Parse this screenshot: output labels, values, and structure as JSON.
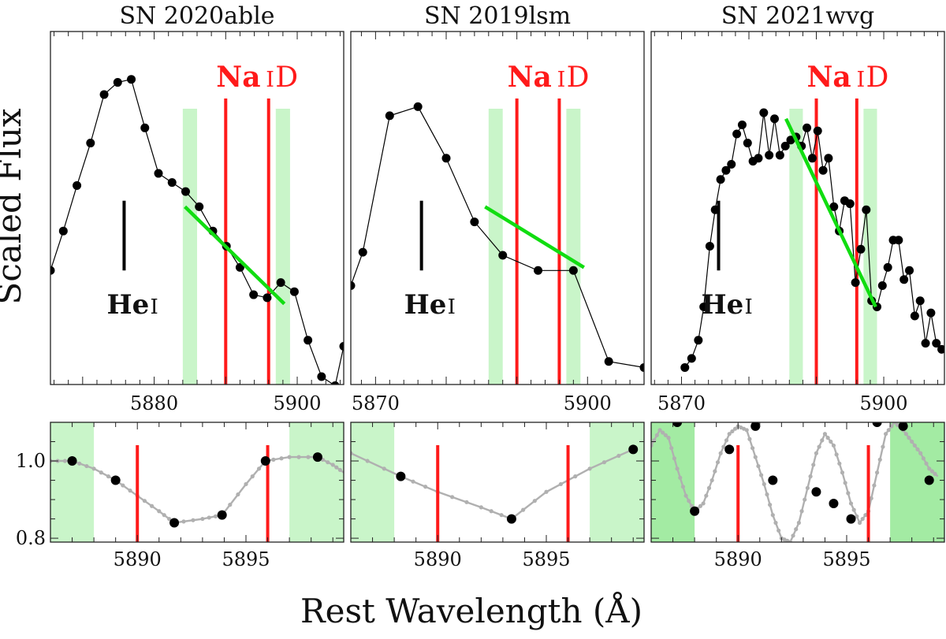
{
  "figure": {
    "ylabel": "Scaled Flux",
    "xlabel": "Rest Wavelength (Å)"
  },
  "colors": {
    "line_marker": "#ff1a1a",
    "fit": "#11dd11",
    "band": "#c9f5c9",
    "band_dark": "#a3eba3",
    "data": "#000000",
    "model": "#b0b0b0"
  },
  "chart_data": [
    {
      "title": "SN 2020able",
      "type": "line",
      "xlim": [
        5865.5,
        5906.5
      ],
      "ylim": [
        0,
        1
      ],
      "xticks": [
        5880,
        5900
      ],
      "minor_step": 2,
      "series": [
        {
          "name": "data",
          "x": [
            5865.5,
            5867.3,
            5869.2,
            5871.1,
            5873.0,
            5874.9,
            5876.8,
            5878.7,
            5880.6,
            5882.5,
            5884.4,
            5886.3,
            5888.2,
            5890.1,
            5892.0,
            5893.9,
            5895.8,
            5897.7,
            5899.6,
            5901.5,
            5903.4,
            5905.3,
            5906.5
          ],
          "y": [
            0.35,
            0.48,
            0.63,
            0.77,
            0.93,
            0.97,
            0.98,
            0.82,
            0.67,
            0.64,
            0.61,
            0.56,
            0.48,
            0.43,
            0.36,
            0.27,
            0.26,
            0.31,
            0.28,
            0.12,
            0.0,
            -0.03,
            0.1
          ]
        }
      ],
      "na_lines": [
        5890.0,
        5896.0
      ],
      "bands": [
        [
          5884.0,
          5886.0
        ],
        [
          5897.0,
          5899.0
        ]
      ],
      "fit": [
        [
          5884.3,
          0.56
        ],
        [
          5898.2,
          0.24
        ]
      ],
      "he_line": {
        "x": 5875.8,
        "y": [
          0.35,
          0.58
        ],
        "label": "He",
        "sub": "I"
      },
      "na_label": {
        "main": "Na",
        "sub": "I",
        "tail": "D"
      },
      "inset": {
        "xlim": [
          5886.0,
          5899.5
        ],
        "ylim": [
          0.79,
          1.1
        ],
        "xticks": [
          5890,
          5895
        ],
        "yticks": [
          1.0,
          0.8
        ],
        "model": {
          "x": [
            5886.0,
            5887.0,
            5888.0,
            5889.0,
            5890.0,
            5891.0,
            5891.7,
            5893.0,
            5893.9,
            5895.0,
            5895.9,
            5897.0,
            5898.3,
            5899.0,
            5899.5
          ],
          "y": [
            1.0,
            1.0,
            0.98,
            0.95,
            0.91,
            0.87,
            0.84,
            0.85,
            0.86,
            0.94,
            1.0,
            1.01,
            1.01,
            0.99,
            0.97
          ]
        },
        "points": {
          "x": [
            5887.0,
            5889.0,
            5891.7,
            5893.9,
            5895.9,
            5898.3
          ],
          "y": [
            1.0,
            0.95,
            0.84,
            0.86,
            1.0,
            1.01
          ]
        },
        "na_lines": [
          5890.0,
          5896.0
        ],
        "bands": [
          [
            5886.0,
            5888.0
          ],
          [
            5897.0,
            5899.5
          ]
        ],
        "dark_bands": false
      }
    },
    {
      "title": "SN 2019lsm",
      "type": "line",
      "xlim": [
        5866.5,
        5908.0
      ],
      "ylim": [
        0,
        1
      ],
      "xticks": [
        5870,
        5900
      ],
      "minor_step": 2,
      "series": [
        {
          "name": "data",
          "x": [
            5866.5,
            5868.2,
            5872.0,
            5876.0,
            5880.0,
            5884.0,
            5888.0,
            5893.0,
            5898.0,
            5903.0,
            5908.0
          ],
          "y": [
            0.3,
            0.41,
            0.86,
            0.89,
            0.72,
            0.51,
            0.4,
            0.35,
            0.35,
            0.05,
            0.03
          ]
        }
      ],
      "na_lines": [
        5890.0,
        5896.0
      ],
      "bands": [
        [
          5886.0,
          5888.0
        ],
        [
          5897.0,
          5899.0
        ]
      ],
      "fit": [
        [
          5885.5,
          0.56
        ],
        [
          5899.5,
          0.36
        ]
      ],
      "he_line": {
        "x": 5876.5,
        "y": [
          0.35,
          0.58
        ],
        "label": "He",
        "sub": "I"
      },
      "na_label": {
        "main": "Na",
        "sub": "I",
        "tail": "D"
      },
      "inset": {
        "xlim": [
          5886.0,
          5899.5
        ],
        "ylim": [
          0.79,
          1.1
        ],
        "xticks": [
          5890,
          5895
        ],
        "yticks": [
          1.0,
          0.8
        ],
        "model": {
          "x": [
            5886.0,
            5888.3,
            5890.0,
            5892.0,
            5893.4,
            5895.0,
            5897.0,
            5899.0
          ],
          "y": [
            1.02,
            0.96,
            0.92,
            0.88,
            0.85,
            0.92,
            0.98,
            1.03
          ]
        },
        "points": {
          "x": [
            5888.3,
            5893.4,
            5899.0
          ],
          "y": [
            0.96,
            0.85,
            1.03
          ]
        },
        "na_lines": [
          5890.0,
          5896.0
        ],
        "bands": [
          [
            5886.0,
            5888.0
          ],
          [
            5897.0,
            5899.5
          ]
        ],
        "dark_bands": false
      }
    },
    {
      "title": "SN 2021wvg",
      "type": "line",
      "xlim": [
        5865.5,
        5909.0
      ],
      "ylim": [
        0,
        1
      ],
      "xticks": [
        5870,
        5900
      ],
      "minor_step": 2,
      "series": [
        {
          "name": "data",
          "x": [
            5870.5,
            5871.5,
            5872.5,
            5873.3,
            5874.2,
            5875.0,
            5875.8,
            5876.6,
            5877.4,
            5878.2,
            5879.0,
            5879.8,
            5880.6,
            5881.4,
            5882.2,
            5883.0,
            5883.8,
            5884.6,
            5885.4,
            5886.2,
            5887.0,
            5887.8,
            5888.6,
            5889.4,
            5890.2,
            5891.0,
            5891.8,
            5892.6,
            5893.4,
            5894.2,
            5895.0,
            5895.8,
            5896.6,
            5897.4,
            5898.2,
            5899.0,
            5899.8,
            5900.6,
            5901.4,
            5902.2,
            5903.0,
            5903.8,
            5904.6,
            5905.4,
            5906.2,
            5907.0,
            5907.8,
            5908.6
          ],
          "y": [
            0.03,
            0.06,
            0.12,
            0.23,
            0.43,
            0.55,
            0.65,
            0.68,
            0.7,
            0.8,
            0.83,
            0.77,
            0.71,
            0.72,
            0.87,
            0.73,
            0.85,
            0.73,
            0.76,
            0.78,
            0.79,
            0.76,
            0.82,
            0.72,
            0.81,
            0.68,
            0.72,
            0.56,
            0.48,
            0.58,
            0.57,
            0.31,
            0.42,
            0.55,
            0.25,
            0.23,
            0.3,
            0.36,
            0.45,
            0.45,
            0.32,
            0.35,
            0.2,
            0.25,
            0.11,
            0.21,
            0.11,
            0.09
          ]
        }
      ],
      "na_lines": [
        5890.0,
        5896.0
      ],
      "bands": [
        [
          5886.0,
          5888.0
        ],
        [
          5897.0,
          5899.0
        ]
      ],
      "fit": [
        [
          5885.5,
          0.85
        ],
        [
          5898.8,
          0.23
        ]
      ],
      "he_line": {
        "x": 5875.5,
        "y": [
          0.35,
          0.58
        ],
        "label": "He",
        "sub": "I"
      },
      "na_label": {
        "main": "Na",
        "sub": "I",
        "tail": "D"
      },
      "inset": {
        "xlim": [
          5886.0,
          5899.5
        ],
        "ylim": [
          0.79,
          1.1
        ],
        "xticks": [
          5890,
          5895
        ],
        "yticks": [
          1.0,
          0.8
        ],
        "model": {
          "x": [
            5886.0,
            5886.4,
            5886.8,
            5887.2,
            5887.6,
            5888.0,
            5888.4,
            5888.8,
            5889.2,
            5889.6,
            5890.0,
            5890.4,
            5890.8,
            5891.2,
            5891.6,
            5892.0,
            5892.4,
            5892.8,
            5893.2,
            5893.6,
            5894.0,
            5894.4,
            5894.8,
            5895.2,
            5895.6,
            5896.0,
            5896.4,
            5896.8,
            5897.2,
            5897.6,
            5898.0,
            5898.4,
            5898.8,
            5899.2
          ],
          "y": [
            1.04,
            1.08,
            1.06,
            0.98,
            0.91,
            0.87,
            0.89,
            0.95,
            1.02,
            1.07,
            1.09,
            1.08,
            1.01,
            0.94,
            0.86,
            0.8,
            0.79,
            0.84,
            0.93,
            1.02,
            1.07,
            1.04,
            0.97,
            0.89,
            0.84,
            0.87,
            0.97,
            1.07,
            1.1,
            1.08,
            1.05,
            1.02,
            0.98,
            0.96
          ]
        },
        "points": {
          "x": [
            5887.2,
            5888.0,
            5889.6,
            5890.8,
            5891.6,
            5893.6,
            5894.4,
            5895.2,
            5896.4,
            5897.6,
            5898.8
          ],
          "y": [
            1.1,
            0.87,
            1.03,
            1.09,
            0.95,
            0.92,
            0.89,
            0.85,
            1.1,
            1.09,
            0.95
          ]
        },
        "na_lines": [
          5890.0,
          5896.0
        ],
        "bands": [
          [
            5886.0,
            5888.0
          ],
          [
            5897.0,
            5899.5
          ]
        ],
        "dark_bands": true
      }
    }
  ]
}
